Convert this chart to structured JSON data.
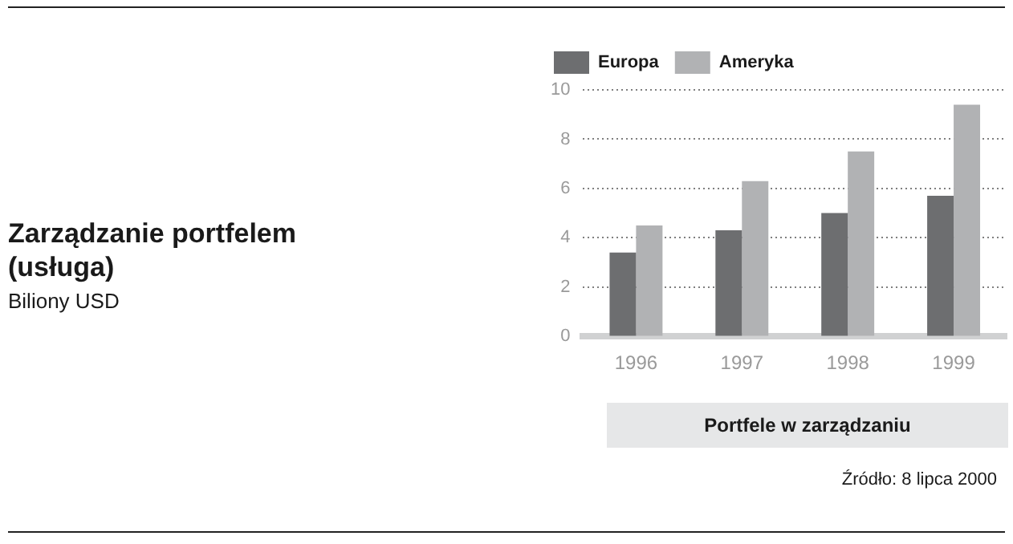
{
  "chart_data": {
    "type": "bar",
    "title": "Zarządzanie portfelem (usługa)",
    "subtitle": "Biliony USD",
    "xlabel": "Portfele w zarządzaniu",
    "categories": [
      "1996",
      "1997",
      "1998",
      "1999"
    ],
    "series": [
      {
        "name": "Europa",
        "color": "#6d6e70",
        "values": [
          3.4,
          4.3,
          5.0,
          5.7
        ]
      },
      {
        "name": "Ameryka",
        "color": "#b1b2b4",
        "values": [
          4.5,
          6.3,
          7.5,
          9.4
        ]
      }
    ],
    "ylim": [
      0,
      10
    ],
    "yticks": [
      0,
      2,
      4,
      6,
      8,
      10
    ],
    "grid": "y",
    "legend": "top left",
    "annotations": [
      "Źródło: 8 lipca 2000"
    ]
  }
}
